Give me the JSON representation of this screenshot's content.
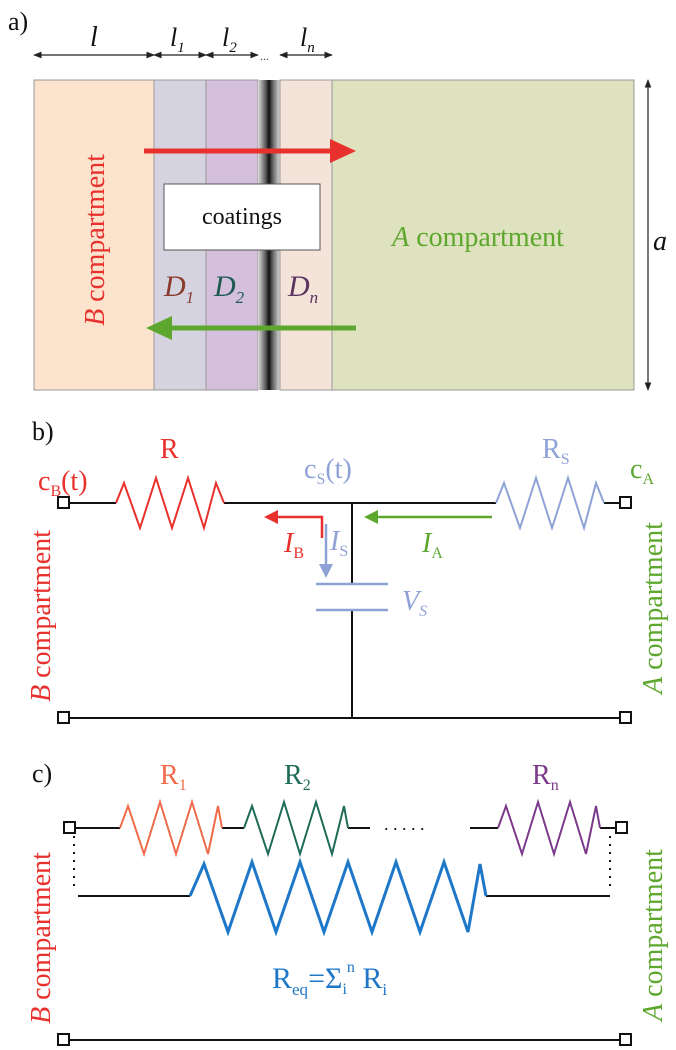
{
  "colors": {
    "b_region": "#fce3cd",
    "a_region": "#dfe2bf",
    "layer1": "#d4d3df",
    "layer2": "#d4c0dd",
    "layer_n": "#f4e3d8",
    "red": "#e8312d",
    "green": "#5ea72f",
    "blue_light": "#8ea2d6",
    "blue": "#1f77c8",
    "orange_r1": "#ef6b4a",
    "teal_r2": "#1f6b58",
    "purple_rn": "#7b3a8a",
    "d1": "#8a3b2e",
    "d2": "#1f5a52",
    "dn": "#5a3560"
  },
  "panel_a": {
    "label": "a)",
    "dims": {
      "l": "l",
      "l1_base": "l",
      "l1_sub": "1",
      "l2_base": "l",
      "l2_sub": "2",
      "ln_base": "l",
      "ln_sub": "n",
      "dots": "...",
      "a": "a"
    },
    "b_label_italic": "B",
    "b_label_rest": " compartment",
    "a_label_italic": "A",
    "a_label_rest": " compartment",
    "coatings": "coatings",
    "d1_base": "D",
    "d1_sub": "1",
    "d2_base": "D",
    "d2_sub": "2",
    "dn_base": "D",
    "dn_sub": "n"
  },
  "panel_b": {
    "label": "b)",
    "cb_base": "c",
    "cb_sub": "B",
    "cb_rest": "(t)",
    "r": "R",
    "cs_base": "c",
    "cs_sub": "S",
    "cs_rest": "(t)",
    "rs_base": "R",
    "rs_sub": "S",
    "ca_base": "c",
    "ca_sub": "A",
    "ib_base": "I",
    "ib_sub": "B",
    "is_base": "I",
    "is_sub": "S",
    "ia_base": "I",
    "ia_sub": "A",
    "vs_base": "V",
    "vs_sub": "S",
    "b_label_italic": "B",
    "b_label_rest": " compartment",
    "a_label_italic": "A",
    "a_label_rest": " compartment"
  },
  "panel_c": {
    "label": "c)",
    "r1_base": "R",
    "r1_sub": "1",
    "r2_base": "R",
    "r2_sub": "2",
    "rn_base": "R",
    "rn_sub": "n",
    "dots": ". . . . .",
    "req_base": "R",
    "req_sub": "eq",
    "req_eq": "=Σ",
    "req_sub_i": "i",
    "req_sup_n": "n",
    "req_r": " R",
    "req_sub_i2": "i",
    "b_label_italic": "B",
    "b_label_rest": " compartment",
    "a_label_italic": "A",
    "a_label_rest": " compartment"
  }
}
